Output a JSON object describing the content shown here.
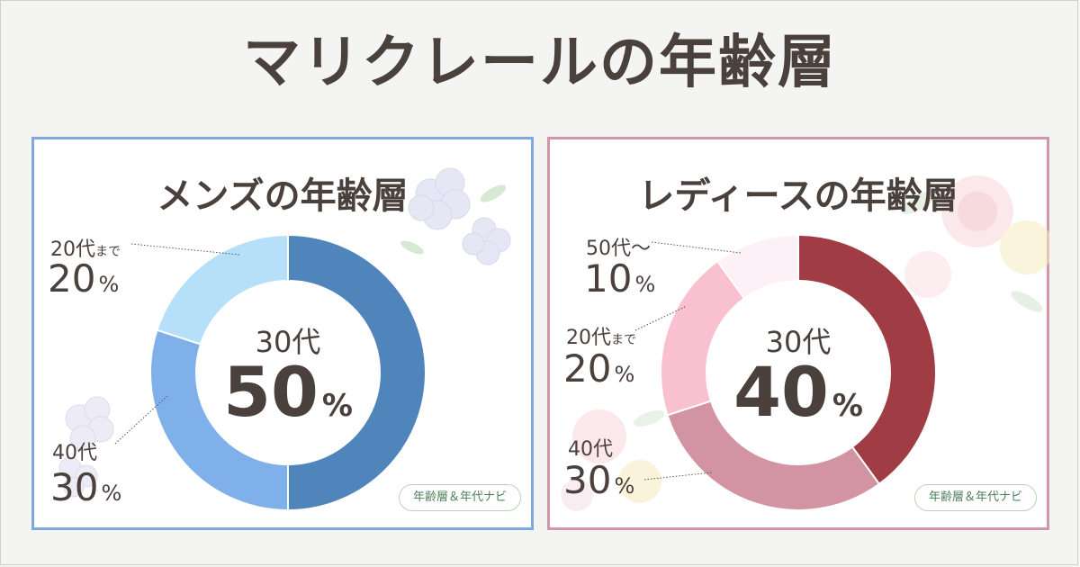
{
  "title": "マリクレールの年齢層",
  "badge_text": "年齢層＆年代ナビ",
  "colors": {
    "mens_border": "#7ea9dc",
    "ladies_border": "#cf97a7",
    "badge_border": "#b9d6b2",
    "badge_text": "#4d7f5b"
  },
  "chart_data": [
    {
      "type": "pie",
      "title": "メンズの年齢層",
      "categories": [
        "30代",
        "40代",
        "20代まで"
      ],
      "values": [
        50,
        30,
        20
      ],
      "colors": [
        "#5085bb",
        "#80b0e9",
        "#b6e0fa"
      ],
      "labels": [
        {
          "age": "20代",
          "age_suffix": "まで",
          "pct": "20",
          "unit": "%"
        },
        {
          "age": "40代",
          "age_suffix": "",
          "pct": "30",
          "unit": "%"
        }
      ],
      "center": {
        "age": "30代",
        "pct": "50",
        "unit": "%"
      }
    },
    {
      "type": "pie",
      "title": "レディースの年齢層",
      "categories": [
        "30代",
        "40代",
        "20代まで",
        "50代〜"
      ],
      "values": [
        40,
        30,
        20,
        10
      ],
      "colors": [
        "#a03c43",
        "#d293a2",
        "#f9c0d0",
        "#fdf0f6"
      ],
      "labels": [
        {
          "age": "50代〜",
          "age_suffix": "",
          "pct": "10",
          "unit": "%"
        },
        {
          "age": "20代",
          "age_suffix": "まで",
          "pct": "20",
          "unit": "%"
        },
        {
          "age": "40代",
          "age_suffix": "",
          "pct": "30",
          "unit": "%"
        }
      ],
      "center": {
        "age": "30代",
        "pct": "40",
        "unit": "%"
      }
    }
  ]
}
